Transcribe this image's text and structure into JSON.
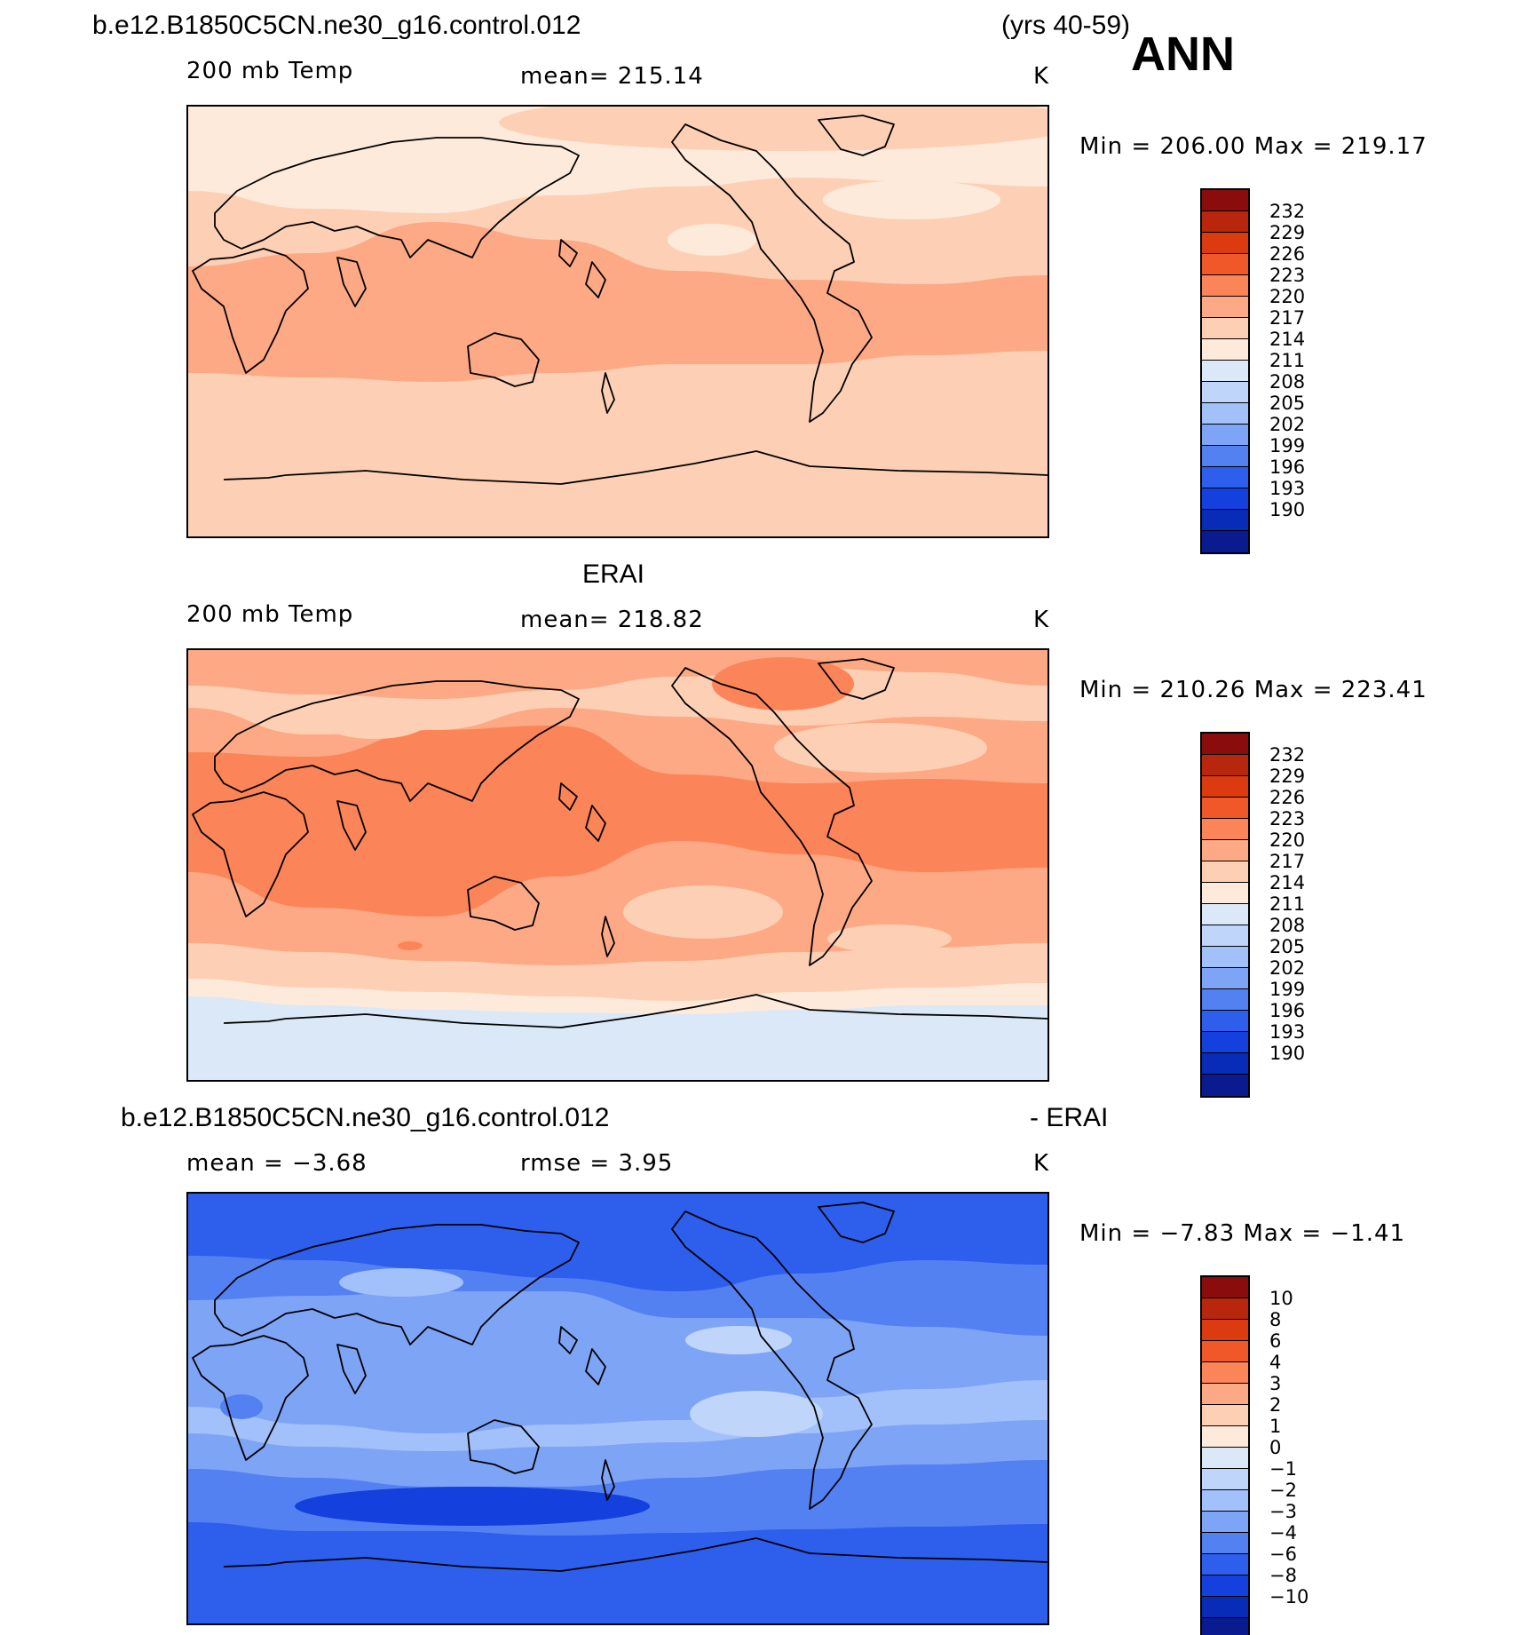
{
  "header": {
    "case_name": "b.e12.B1850C5CN.ne30_g16.control.012",
    "years": "(yrs 40-59)",
    "season": "ANN"
  },
  "panels": [
    {
      "variable": "200 mb Temp",
      "mean_text": "mean= 215.14",
      "units": "K",
      "stats_text": "Min = 206.00 Max = 219.17",
      "colorbar_levels": [
        "232",
        "229",
        "226",
        "223",
        "220",
        "217",
        "214",
        "211",
        "208",
        "205",
        "202",
        "199",
        "196",
        "193",
        "190"
      ],
      "colors": [
        "#8a0c0c",
        "#b8260e",
        "#dc3a0f",
        "#f0582a",
        "#fb8558",
        "#fda985",
        "#fdd0b5",
        "#feeada",
        "#dbe8f8",
        "#bfd6fa",
        "#a2c0fa",
        "#7ea4f6",
        "#5481f2",
        "#2e5fec",
        "#1440dd",
        "#092cb8",
        "#0a1a8f"
      ],
      "bands": [
        {
          "ys": [
            0,
            0,
            0,
            0,
            0,
            0,
            0,
            0
          ],
          "color": "#feeada"
        },
        {
          "ys": [
            390,
            385,
            375,
            360,
            350,
            345,
            355,
            370
          ],
          "color": "#dbe8f8"
        },
        {
          "ys": [
            440,
            440,
            430,
            430,
            432,
            438,
            436,
            440
          ],
          "color": "#bfd6fa"
        },
        {
          "ys": [
            95,
            115,
            120,
            100,
            90,
            80,
            85,
            90
          ],
          "color": "#fdd0b5"
        },
        {
          "ys": [
            180,
            165,
            130,
            150,
            185,
            195,
            200,
            190
          ],
          "color": "#fda985"
        },
        {
          "ys": [
            300,
            305,
            310,
            300,
            290,
            290,
            280,
            275
          ],
          "color": "#fdd0b5"
        }
      ],
      "blobs": [
        {
          "cx": 680,
          "cy": 18,
          "rx": 330,
          "ry": 32,
          "color": "#fdd0b5"
        },
        {
          "cx": 815,
          "cy": 105,
          "rx": 100,
          "ry": 22,
          "color": "#feeada"
        },
        {
          "cx": 590,
          "cy": 150,
          "rx": 50,
          "ry": 18,
          "color": "#feeada"
        }
      ]
    },
    {
      "title": "ERAI",
      "variable": "200 mb Temp",
      "mean_text": "mean= 218.82",
      "units": "K",
      "stats_text": "Min = 210.26 Max = 223.41",
      "colorbar_levels": [
        "232",
        "229",
        "226",
        "223",
        "220",
        "217",
        "214",
        "211",
        "208",
        "205",
        "202",
        "199",
        "196",
        "193",
        "190"
      ],
      "colors": [
        "#8a0c0c",
        "#b8260e",
        "#dc3a0f",
        "#f0582a",
        "#fb8558",
        "#fda985",
        "#fdd0b5",
        "#feeada",
        "#dbe8f8",
        "#bfd6fa",
        "#a2c0fa",
        "#7ea4f6",
        "#5481f2",
        "#2e5fec",
        "#1440dd",
        "#092cb8",
        "#0a1a8f"
      ],
      "bands": [
        {
          "ys": [
            0,
            0,
            0,
            0,
            0,
            0,
            0,
            0
          ],
          "color": "#fda985"
        },
        {
          "ys": [
            40,
            50,
            55,
            45,
            30,
            20,
            25,
            40
          ],
          "color": "#fdd0b5"
        },
        {
          "ys": [
            65,
            95,
            90,
            65,
            75,
            85,
            75,
            80
          ],
          "color": "#fda985"
        },
        {
          "ys": [
            115,
            120,
            90,
            85,
            140,
            150,
            145,
            150
          ],
          "color": "#fb8558"
        },
        {
          "ys": [
            250,
            290,
            300,
            255,
            215,
            230,
            250,
            245
          ],
          "color": "#fda985"
        },
        {
          "ys": [
            330,
            340,
            350,
            355,
            350,
            340,
            335,
            330
          ],
          "color": "#fdd0b5"
        },
        {
          "ys": [
            370,
            380,
            385,
            390,
            395,
            385,
            380,
            375
          ],
          "color": "#feeada"
        },
        {
          "ys": [
            390,
            400,
            405,
            408,
            410,
            405,
            400,
            400
          ],
          "color": "#dbe8f8"
        }
      ],
      "blobs": [
        {
          "cx": 670,
          "cy": 38,
          "rx": 80,
          "ry": 30,
          "color": "#fb8558"
        },
        {
          "cx": 210,
          "cy": 80,
          "rx": 60,
          "ry": 20,
          "color": "#fdd0b5"
        },
        {
          "cx": 610,
          "cy": 115,
          "rx": 90,
          "ry": 20,
          "color": "#fda985"
        },
        {
          "cx": 780,
          "cy": 110,
          "rx": 120,
          "ry": 28,
          "color": "#fdd0b5"
        },
        {
          "cx": 580,
          "cy": 295,
          "rx": 90,
          "ry": 30,
          "color": "#fdd0b5"
        },
        {
          "cx": 790,
          "cy": 325,
          "rx": 70,
          "ry": 16,
          "color": "#fdd0b5"
        },
        {
          "cx": 250,
          "cy": 333,
          "rx": 14,
          "ry": 5,
          "color": "#fb8558"
        }
      ]
    },
    {
      "title_left": "b.e12.B1850C5CN.ne30_g16.control.012",
      "title_right": "- ERAI",
      "mean_text": "mean =   −3.68",
      "rmse_text": "rmse =     3.95",
      "units": "K",
      "stats_text": "Min =   −7.83 Max =   −1.41",
      "colorbar_levels": [
        "10",
        "8",
        "6",
        "4",
        "3",
        "2",
        "1",
        "0",
        "−1",
        "−2",
        "−3",
        "−4",
        "−6",
        "−8",
        "−10"
      ],
      "colors": [
        "#8a0c0c",
        "#b8260e",
        "#dc3a0f",
        "#f0582a",
        "#fb8558",
        "#fda985",
        "#fdd0b5",
        "#feeada",
        "#dbe8f8",
        "#bfd6fa",
        "#a2c0fa",
        "#7ea4f6",
        "#5481f2",
        "#2e5fec",
        "#1440dd",
        "#092cb8",
        "#0a1a8f"
      ],
      "bands": [
        {
          "ys": [
            0,
            0,
            0,
            0,
            0,
            0,
            0,
            0
          ],
          "color": "#2e5fec"
        },
        {
          "ys": [
            70,
            75,
            85,
            95,
            110,
            90,
            75,
            80
          ],
          "color": "#5481f2"
        },
        {
          "ys": [
            120,
            115,
            110,
            110,
            140,
            140,
            150,
            160
          ],
          "color": "#7ea4f6"
        },
        {
          "ys": [
            240,
            260,
            270,
            260,
            255,
            230,
            220,
            210
          ],
          "color": "#a2c0fa"
        },
        {
          "ys": [
            270,
            285,
            290,
            285,
            280,
            270,
            260,
            255
          ],
          "color": "#7ea4f6"
        },
        {
          "ys": [
            310,
            320,
            330,
            330,
            320,
            310,
            305,
            300
          ],
          "color": "#5481f2"
        },
        {
          "ys": [
            370,
            380,
            380,
            385,
            382,
            378,
            375,
            372
          ],
          "color": "#2e5fec"
        }
      ],
      "blobs": [
        {
          "cx": 240,
          "cy": 100,
          "rx": 70,
          "ry": 16,
          "color": "#a2c0fa"
        },
        {
          "cx": 620,
          "cy": 165,
          "rx": 60,
          "ry": 16,
          "color": "#bfd6fa"
        },
        {
          "cx": 640,
          "cy": 248,
          "rx": 75,
          "ry": 26,
          "color": "#bfd6fa"
        },
        {
          "cx": 320,
          "cy": 352,
          "rx": 200,
          "ry": 22,
          "color": "#1440dd"
        },
        {
          "cx": 60,
          "cy": 240,
          "rx": 24,
          "ry": 14,
          "color": "#5481f2"
        }
      ]
    }
  ]
}
